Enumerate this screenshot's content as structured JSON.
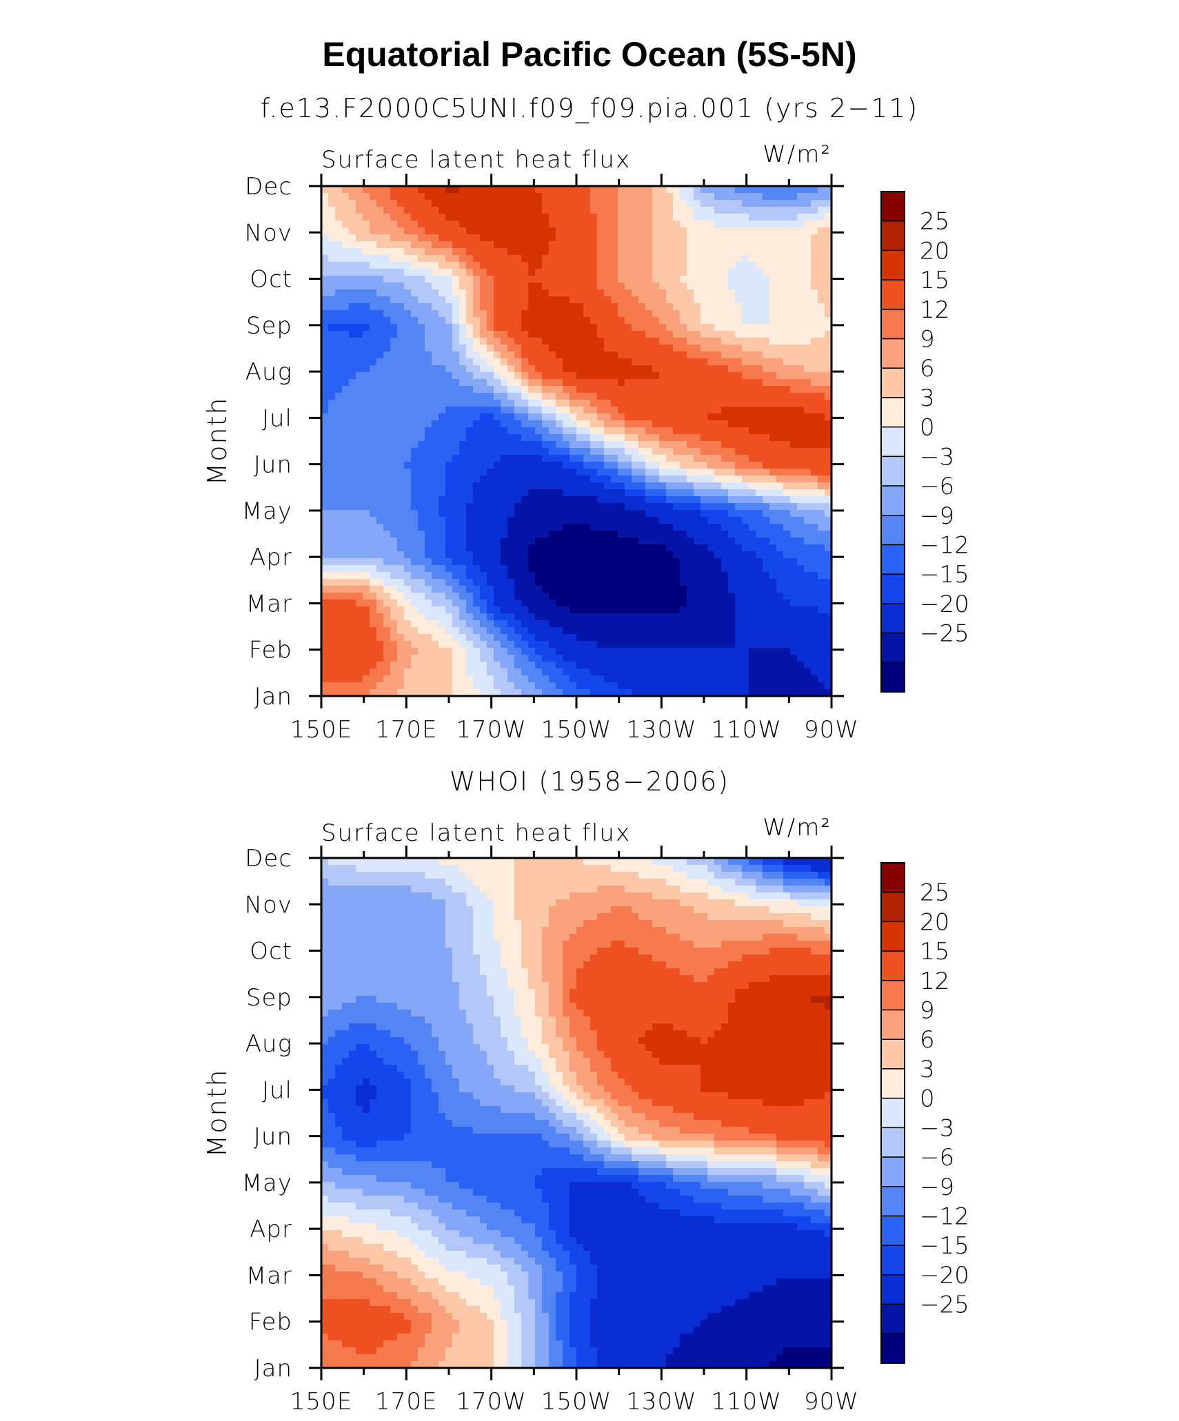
{
  "title": "Equatorial Pacific Ocean (5S-5N)",
  "colors": {
    "levels": [
      "#00007f",
      "#0515a8",
      "#0a2ed3",
      "#1446ee",
      "#2b64f4",
      "#5385f5",
      "#84a7f7",
      "#b3c8f9",
      "#dbe7fb",
      "#fdebdc",
      "#fcc7a7",
      "#f9a27c",
      "#f67a4e",
      "#f05122",
      "#d83400",
      "#b42300",
      "#8a0000"
    ],
    "frame": "#000000",
    "background": "#ffffff"
  },
  "colorbar": {
    "labels": [
      "25",
      "20",
      "15",
      "12",
      "9",
      "6",
      "3",
      "0",
      "−3",
      "−6",
      "−9",
      "−12",
      "−15",
      "−20",
      "−25"
    ]
  },
  "chart_data": [
    {
      "type": "heatmap",
      "title": "f.e13.F2000C5UNI.f09_f09.pia.001 (yrs 2−11)",
      "variable": "Surface latent heat flux",
      "units": "W/m²",
      "xlabel": "",
      "ylabel": "Month",
      "x_ticks": [
        "150E",
        "170E",
        "170W",
        "150W",
        "130W",
        "110W",
        "90W"
      ],
      "x_ticks_deg_east": [
        150,
        170,
        190,
        210,
        230,
        250,
        270
      ],
      "xlim": [
        150,
        270
      ],
      "y_ticks": [
        "Jan",
        "Feb",
        "Mar",
        "Apr",
        "May",
        "Jun",
        "Jul",
        "Aug",
        "Sep",
        "Oct",
        "Nov",
        "Dec"
      ],
      "contour_levels": [
        -25,
        -20,
        -15,
        -12,
        -9,
        -6,
        -3,
        0,
        3,
        6,
        9,
        12,
        15,
        20,
        25
      ],
      "x": [
        150,
        160,
        170,
        180,
        190,
        200,
        210,
        220,
        230,
        240,
        250,
        260,
        270
      ],
      "z": [
        [
          14,
          12,
          8,
          6,
          2,
          -4,
          -10,
          -14,
          -16,
          -18,
          -20,
          -22,
          -20
        ],
        [
          18,
          20,
          10,
          6,
          -3,
          -12,
          -18,
          -20,
          -20,
          -20,
          -20,
          -20,
          -18
        ],
        [
          16,
          15,
          4,
          -2,
          -14,
          -23,
          -27,
          -27,
          -27,
          -24,
          -19,
          -15,
          -14
        ],
        [
          -3,
          -3,
          -6,
          -12,
          -18,
          -27,
          -28,
          -28,
          -27,
          -22,
          -16,
          -12,
          -10
        ],
        [
          -6,
          -6,
          -8,
          -13,
          -18,
          -22,
          -24,
          -22,
          -18,
          -14,
          -10,
          -6,
          -2
        ],
        [
          -7,
          -8,
          -9,
          -12,
          -15,
          -18,
          -13,
          -6,
          4,
          9,
          14,
          18,
          20
        ],
        [
          -9,
          -7,
          -7,
          -10,
          -13,
          -6,
          5,
          14,
          18,
          20,
          22,
          23,
          20
        ],
        [
          -10,
          -9,
          -7,
          -6,
          1,
          15,
          22,
          22,
          20,
          18,
          14,
          10,
          8
        ],
        [
          -12,
          -13,
          -8,
          -3,
          15,
          22,
          23,
          16,
          12,
          6,
          3,
          3,
          6
        ],
        [
          -3,
          -4,
          -2,
          3,
          15,
          20,
          17,
          12,
          8,
          4,
          2,
          4,
          8
        ],
        [
          3,
          8,
          12,
          18,
          22,
          22,
          18,
          12,
          8,
          5,
          4,
          4,
          8
        ],
        [
          6,
          12,
          18,
          26,
          24,
          20,
          16,
          12,
          8,
          -4,
          -8,
          -10,
          -6
        ]
      ]
    },
    {
      "type": "heatmap",
      "title": "WHOI (1958−2006)",
      "variable": "Surface latent heat flux",
      "units": "W/m²",
      "xlabel": "",
      "ylabel": "Month",
      "x_ticks": [
        "150E",
        "170E",
        "170W",
        "150W",
        "130W",
        "110W",
        "90W"
      ],
      "x_ticks_deg_east": [
        150,
        170,
        190,
        210,
        230,
        250,
        270
      ],
      "xlim": [
        150,
        270
      ],
      "y_ticks": [
        "Jan",
        "Feb",
        "Mar",
        "Apr",
        "May",
        "Jun",
        "Jul",
        "Aug",
        "Sep",
        "Oct",
        "Nov",
        "Dec"
      ],
      "contour_levels": [
        -25,
        -20,
        -15,
        -12,
        -9,
        -6,
        -3,
        0,
        3,
        6,
        9,
        12,
        15,
        20,
        25
      ],
      "x": [
        150,
        160,
        170,
        180,
        190,
        200,
        210,
        220,
        230,
        240,
        250,
        260,
        270
      ],
      "z": [
        [
          12,
          14,
          12,
          8,
          6,
          -2,
          -12,
          -18,
          -20,
          -22,
          -24,
          -26,
          -26
        ],
        [
          16,
          18,
          16,
          10,
          6,
          -3,
          -14,
          -18,
          -19,
          -20,
          -22,
          -24,
          -24
        ],
        [
          14,
          12,
          8,
          4,
          2,
          -4,
          -12,
          -18,
          -16,
          -18,
          -18,
          -20,
          -20
        ],
        [
          6,
          4,
          2,
          -3,
          -6,
          -9,
          -16,
          -18,
          -18,
          -17,
          -16,
          -16,
          -14
        ],
        [
          -3,
          -5,
          -6,
          -9,
          -11,
          -12,
          -16,
          -16,
          -12,
          -8,
          -6,
          -4,
          2
        ],
        [
          -10,
          -14,
          -12,
          -10,
          -9,
          -10,
          -5,
          6,
          10,
          12,
          14,
          16,
          18
        ],
        [
          -12,
          -16,
          -13,
          -7,
          -4,
          -2,
          8,
          14,
          18,
          20,
          22,
          22,
          20
        ],
        [
          -9,
          -12,
          -9,
          -5,
          -2,
          4,
          12,
          18,
          22,
          20,
          22,
          24,
          22
        ],
        [
          -4,
          -6,
          -5,
          -4,
          0,
          6,
          16,
          18,
          18,
          16,
          22,
          24,
          26
        ],
        [
          -4,
          -4,
          -5,
          -3,
          2,
          8,
          14,
          16,
          14,
          12,
          14,
          16,
          14
        ],
        [
          -6,
          -6,
          -6,
          -3,
          3,
          8,
          10,
          12,
          10,
          8,
          6,
          4,
          2
        ],
        [
          0,
          2,
          2,
          4,
          6,
          6,
          6,
          4,
          2,
          -2,
          -10,
          -18,
          -22
        ]
      ]
    }
  ]
}
